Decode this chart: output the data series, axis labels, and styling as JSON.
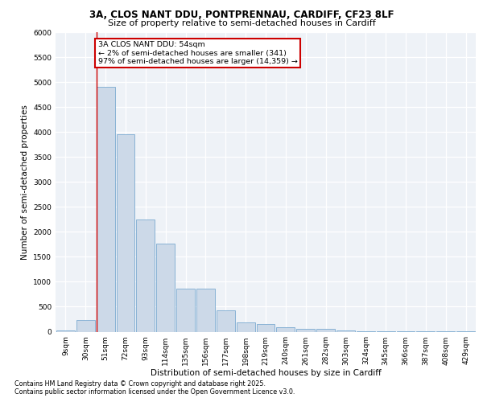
{
  "title_line1": "3A, CLOS NANT DDU, PONTPRENNAU, CARDIFF, CF23 8LF",
  "title_line2": "Size of property relative to semi-detached houses in Cardiff",
  "xlabel": "Distribution of semi-detached houses by size in Cardiff",
  "ylabel": "Number of semi-detached properties",
  "categories": [
    "9sqm",
    "30sqm",
    "51sqm",
    "72sqm",
    "93sqm",
    "114sqm",
    "135sqm",
    "156sqm",
    "177sqm",
    "198sqm",
    "219sqm",
    "240sqm",
    "261sqm",
    "282sqm",
    "303sqm",
    "324sqm",
    "345sqm",
    "366sqm",
    "387sqm",
    "408sqm",
    "429sqm"
  ],
  "values": [
    30,
    230,
    4900,
    3950,
    2240,
    1770,
    860,
    860,
    420,
    185,
    155,
    85,
    60,
    50,
    25,
    15,
    10,
    5,
    5,
    2,
    2
  ],
  "bar_color": "#ccd9e8",
  "bar_edge_color": "#7aaad0",
  "vline_color": "#cc0000",
  "annotation_text": "3A CLOS NANT DDU: 54sqm\n← 2% of semi-detached houses are smaller (341)\n97% of semi-detached houses are larger (14,359) →",
  "annotation_box_color": "#cc0000",
  "ylim": [
    0,
    6000
  ],
  "yticks": [
    0,
    500,
    1000,
    1500,
    2000,
    2500,
    3000,
    3500,
    4000,
    4500,
    5000,
    5500,
    6000
  ],
  "footnote_line1": "Contains HM Land Registry data © Crown copyright and database right 2025.",
  "footnote_line2": "Contains public sector information licensed under the Open Government Licence v3.0.",
  "background_color": "#eef2f7",
  "grid_color": "#ffffff",
  "title1_fontsize": 8.5,
  "title2_fontsize": 8.0,
  "axis_label_fontsize": 7.5,
  "tick_fontsize": 6.5,
  "annotation_fontsize": 6.8,
  "footnote_fontsize": 5.8
}
